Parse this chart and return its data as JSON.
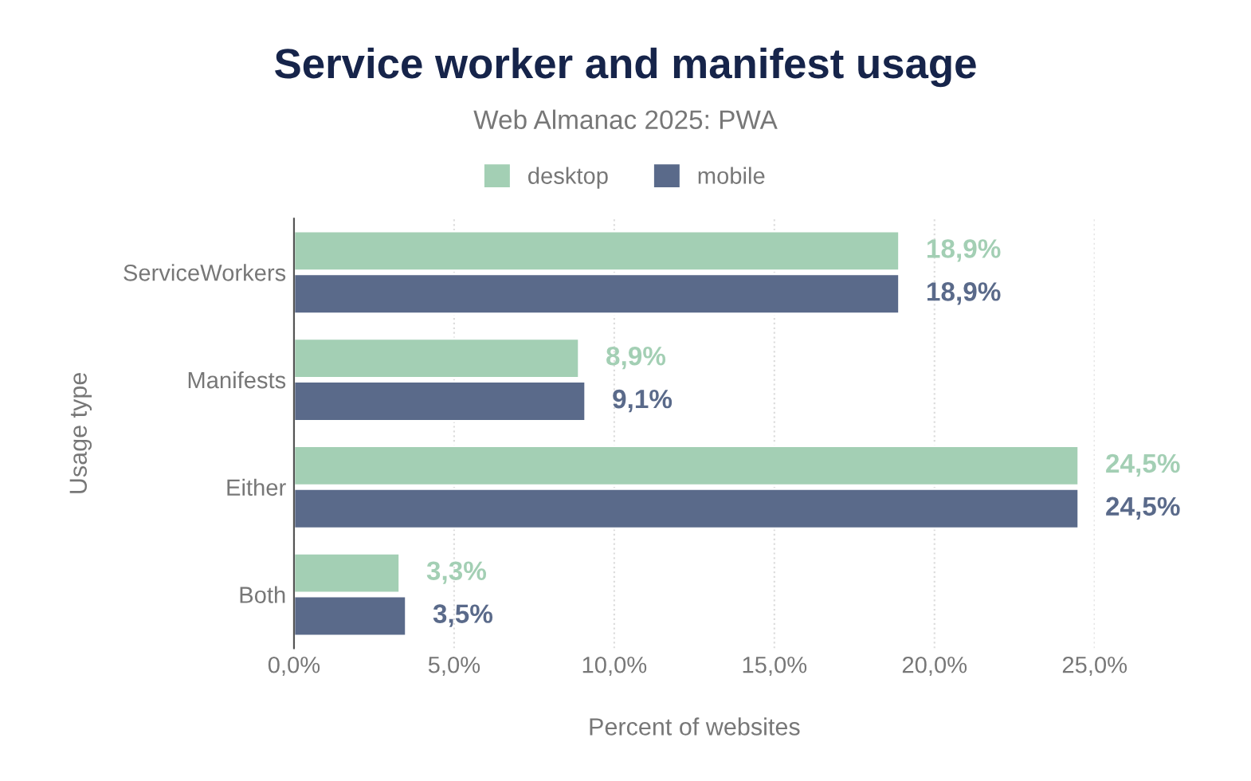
{
  "chart_data": {
    "type": "bar",
    "orientation": "horizontal",
    "title": "Service worker and manifest usage",
    "subtitle": "Web Almanac 2025: PWA",
    "xlabel": "Percent of websites",
    "ylabel": "Usage type",
    "categories": [
      "ServiceWorkers",
      "Manifests",
      "Either",
      "Both"
    ],
    "series": [
      {
        "name": "desktop",
        "color": "#a3cfb4",
        "values": [
          18.9,
          8.9,
          24.5,
          3.3
        ],
        "value_labels": [
          "18,9%",
          "8,9%",
          "24,5%",
          "3,3%"
        ]
      },
      {
        "name": "mobile",
        "color": "#5a6a8a",
        "values": [
          18.9,
          9.1,
          24.5,
          3.5
        ],
        "value_labels": [
          "18,9%",
          "9,1%",
          "24,5%",
          "3,5%"
        ]
      }
    ],
    "xlim": [
      0,
      25
    ],
    "xticks": [
      {
        "value": 0,
        "label": "0,0%"
      },
      {
        "value": 5,
        "label": "5,0%"
      },
      {
        "value": 10,
        "label": "10,0%"
      },
      {
        "value": 15,
        "label": "15,0%"
      },
      {
        "value": 20,
        "label": "20,0%"
      },
      {
        "value": 25,
        "label": "25,0%"
      }
    ],
    "grid": "x",
    "legend": "top"
  }
}
